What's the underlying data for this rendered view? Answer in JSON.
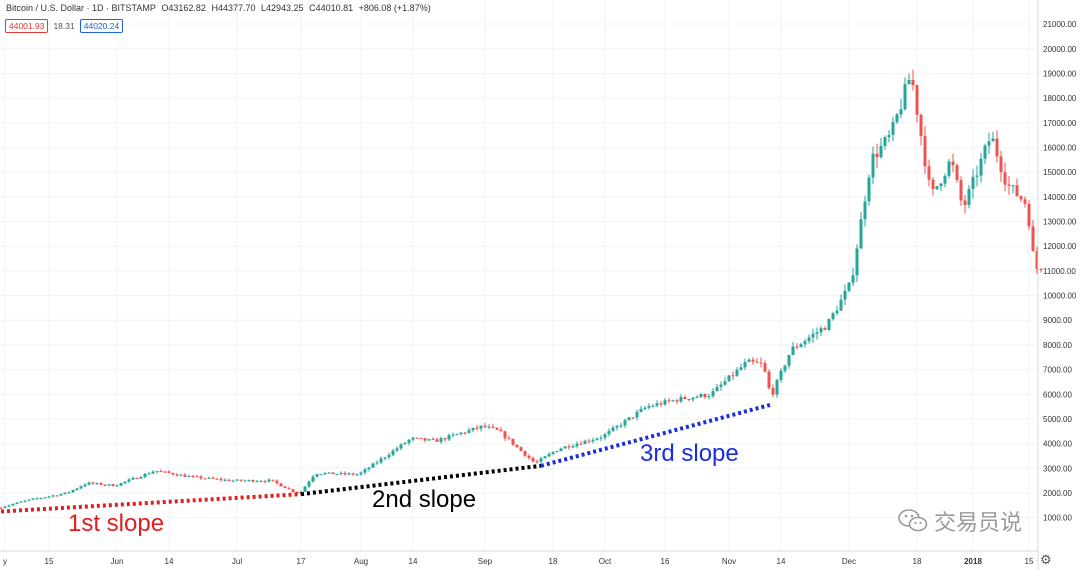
{
  "header": {
    "symbol": "Bitcoin / U.S. Dollar · 1D · BITSTAMP",
    "open": "O43162.82",
    "high": "H44377.70",
    "low": "L42943.25",
    "close": "C44010.81",
    "change": "+806.08 (+1.87%)",
    "bid": "44001.93",
    "spread": "18.31",
    "ask": "44020.24"
  },
  "watermark": "交易员说",
  "colors": {
    "up": "#26a69a",
    "down": "#ef5350",
    "grid": "#f0f3fa",
    "slope1": "#e02020",
    "slope2": "#000000",
    "slope3": "#1a2ee0"
  },
  "icons": {
    "settings": "gear-icon",
    "watermark": "wechat-icon"
  },
  "chart_data": {
    "type": "candlestick",
    "title": "Bitcoin / U.S. Dollar · 1D · BITSTAMP",
    "y_axis": {
      "side": "right",
      "ylim": [
        0,
        21000
      ],
      "ticks": [
        "1000.00",
        "2000.00",
        "3000.00",
        "4000.00",
        "5000.00",
        "6000.00",
        "7000.00",
        "8000.00",
        "9000.00",
        "10000.00",
        "11000.00",
        "12000.00",
        "13000.00",
        "14000.00",
        "15000.00",
        "16000.00",
        "17000.00",
        "18000.00",
        "19000.00",
        "20000.00",
        "21000.00"
      ]
    },
    "x_axis": {
      "range": [
        "2017-05-03",
        "2018-01-18"
      ],
      "tick_labels": [
        {
          "date": "2017-05-04",
          "label": "y"
        },
        {
          "date": "2017-05-15",
          "label": "15"
        },
        {
          "date": "2017-06-01",
          "label": "Jun"
        },
        {
          "date": "2017-06-14",
          "label": "14"
        },
        {
          "date": "2017-07-01",
          "label": "Jul"
        },
        {
          "date": "2017-07-17",
          "label": "17"
        },
        {
          "date": "2017-08-01",
          "label": "Aug"
        },
        {
          "date": "2017-08-14",
          "label": "14"
        },
        {
          "date": "2017-09-01",
          "label": "Sep"
        },
        {
          "date": "2017-09-18",
          "label": "18"
        },
        {
          "date": "2017-10-01",
          "label": "Oct"
        },
        {
          "date": "2017-10-16",
          "label": "16"
        },
        {
          "date": "2017-11-01",
          "label": "Nov"
        },
        {
          "date": "2017-11-14",
          "label": "14"
        },
        {
          "date": "2017-12-01",
          "label": "Dec"
        },
        {
          "date": "2017-12-18",
          "label": "18"
        },
        {
          "date": "2018-01-01",
          "label": "2018"
        },
        {
          "date": "2018-01-15",
          "label": "15"
        }
      ]
    },
    "price_path": [
      [
        "2017-05-03",
        1400
      ],
      [
        "2017-05-10",
        1700
      ],
      [
        "2017-05-20",
        2000
      ],
      [
        "2017-05-25",
        2400
      ],
      [
        "2017-06-01",
        2300
      ],
      [
        "2017-06-11",
        2900
      ],
      [
        "2017-06-20",
        2650
      ],
      [
        "2017-06-30",
        2500
      ],
      [
        "2017-07-10",
        2500
      ],
      [
        "2017-07-17",
        1950
      ],
      [
        "2017-07-21",
        2800
      ],
      [
        "2017-08-01",
        2750
      ],
      [
        "2017-08-05",
        3200
      ],
      [
        "2017-08-14",
        4200
      ],
      [
        "2017-08-20",
        4100
      ],
      [
        "2017-09-01",
        4700
      ],
      [
        "2017-09-05",
        4500
      ],
      [
        "2017-09-14",
        3200
      ],
      [
        "2017-09-20",
        3800
      ],
      [
        "2017-10-01",
        4300
      ],
      [
        "2017-10-12",
        5500
      ],
      [
        "2017-10-20",
        5800
      ],
      [
        "2017-10-28",
        6000
      ],
      [
        "2017-11-06",
        7300
      ],
      [
        "2017-11-10",
        7200
      ],
      [
        "2017-11-12",
        5900
      ],
      [
        "2017-11-17",
        7800
      ],
      [
        "2017-11-26",
        8800
      ],
      [
        "2017-12-02",
        10500
      ],
      [
        "2017-12-07",
        15500
      ],
      [
        "2017-12-12",
        16500
      ],
      [
        "2017-12-17",
        19000
      ],
      [
        "2017-12-22",
        14000
      ],
      [
        "2017-12-27",
        15500
      ],
      [
        "2017-12-30",
        13500
      ],
      [
        "2018-01-06",
        16500
      ],
      [
        "2018-01-10",
        14500
      ],
      [
        "2018-01-15",
        13700
      ],
      [
        "2018-01-17",
        11000
      ],
      [
        "2018-01-18",
        11200
      ]
    ],
    "annotations": [
      {
        "text": "1st slope",
        "color": "#e02020",
        "line": [
          [
            "2017-05-03",
            1250
          ],
          [
            "2017-07-17",
            1950
          ]
        ]
      },
      {
        "text": "2nd slope",
        "color": "#000000",
        "line": [
          [
            "2017-07-17",
            1950
          ],
          [
            "2017-09-15",
            3100
          ]
        ]
      },
      {
        "text": "3rd slope",
        "color": "#1a2ee0",
        "line": [
          [
            "2017-09-15",
            3100
          ],
          [
            "2017-11-12",
            5600
          ]
        ]
      }
    ]
  }
}
